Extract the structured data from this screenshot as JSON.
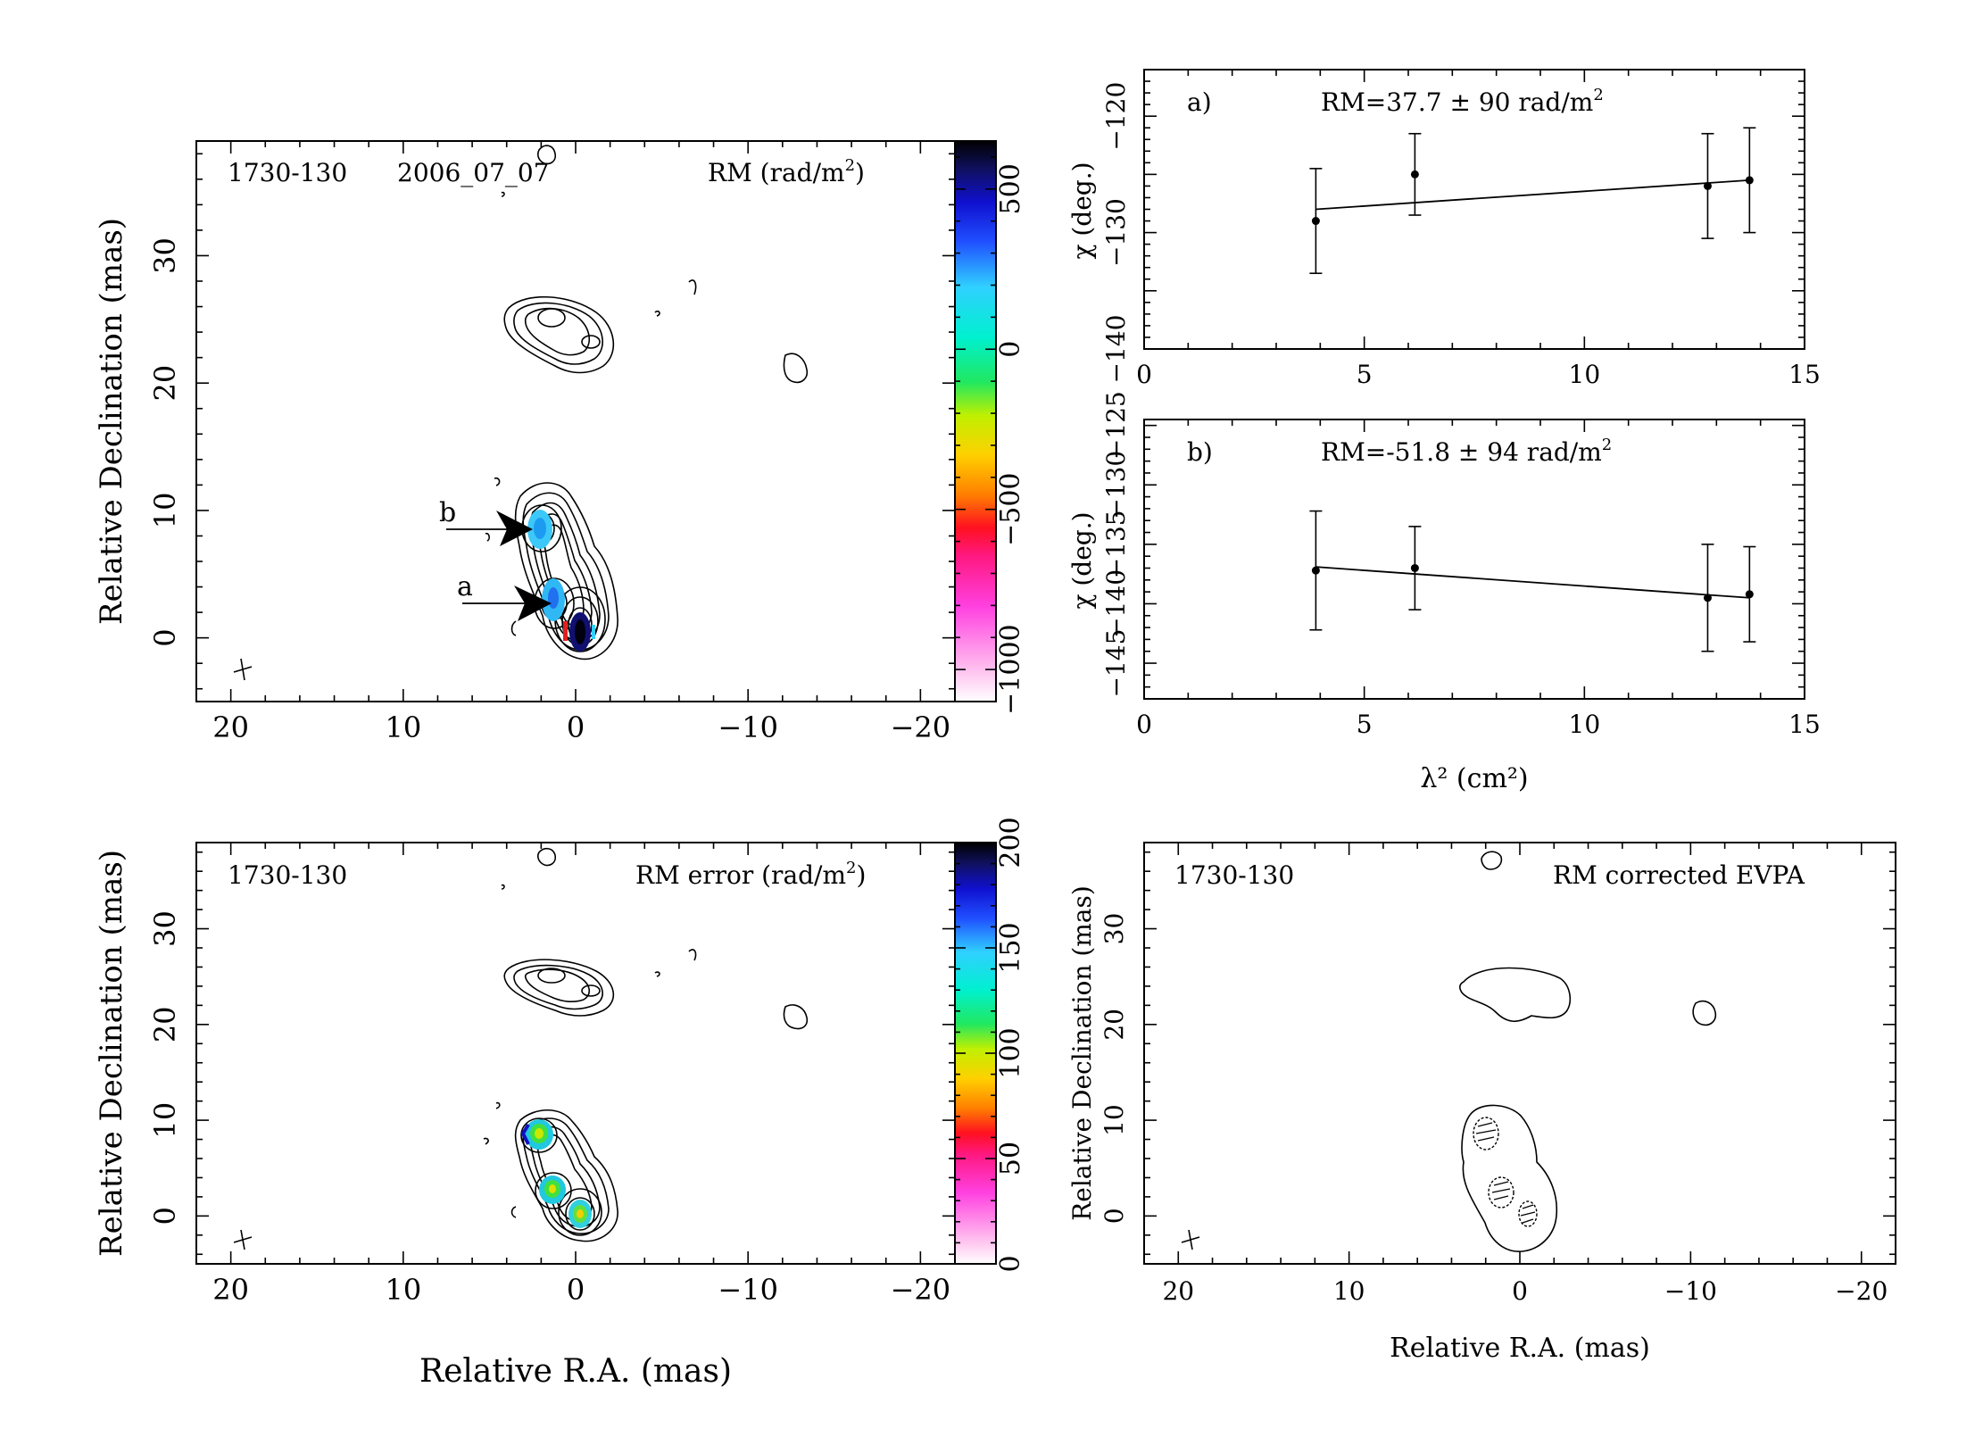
{
  "panels": {
    "rm_map": {
      "source": "1730-130",
      "epoch": "2006_07_07",
      "label": "RM (rad/m",
      "label_sup": "2",
      "label_close": ")",
      "xlabel": "",
      "ylabel": "Relative Declination (mas)",
      "colorbar_ticks": [
        "500",
        "0",
        "-500",
        "-1000"
      ],
      "colorbar_values": [
        500,
        0,
        -500,
        -1000
      ],
      "colorbar_range": [
        -1100,
        650
      ],
      "annotation_a": "a",
      "annotation_b": "b"
    },
    "rm_error_map": {
      "source": "1730-130",
      "label": "RM error (rad/m",
      "label_sup": "2",
      "label_close": ")",
      "xlabel": "Relative R.A. (mas)",
      "ylabel": "Relative Declination (mas)",
      "colorbar_ticks": [
        "200",
        "150",
        "100",
        "50",
        "0"
      ],
      "colorbar_values": [
        200,
        150,
        100,
        50,
        0
      ],
      "colorbar_range": [
        0,
        200
      ]
    },
    "evpa_map": {
      "source": "1730-130",
      "label": "RM corrected EVPA",
      "xlabel": "Relative R.A. (mas)",
      "ylabel": "Relative Declination (mas)"
    },
    "map_axes": {
      "x_ticks": [
        "20",
        "10",
        "0",
        "-10",
        "-20"
      ],
      "x_tick_values": [
        20,
        10,
        0,
        -10,
        -20
      ],
      "y_ticks": [
        "0",
        "10",
        "20",
        "30"
      ],
      "y_tick_values": [
        0,
        10,
        20,
        30
      ],
      "xlim": [
        22,
        -22
      ],
      "ylim": [
        -5,
        39
      ]
    }
  },
  "chart_data": [
    {
      "type": "scatter",
      "panel_label": "a)",
      "title": "RM=37.7 ± 90 rad/m",
      "title_sup": "2",
      "xlabel": "",
      "ylabel": "χ (deg.)",
      "xlim": [
        0,
        15
      ],
      "ylim": [
        -140,
        -116
      ],
      "x_ticks": [
        "0",
        "5",
        "10",
        "15"
      ],
      "y_ticks": [
        "-120",
        "-130",
        "-140"
      ],
      "y_tick_values": [
        -120,
        -130,
        -140
      ],
      "points": [
        {
          "x": 3.9,
          "y": -129.0,
          "err": 4.5
        },
        {
          "x": 6.15,
          "y": -125.0,
          "err": 3.5
        },
        {
          "x": 12.8,
          "y": -126.0,
          "err": 4.5
        },
        {
          "x": 13.75,
          "y": -125.5,
          "err": 4.5
        }
      ],
      "fit": {
        "x": [
          3.9,
          13.75
        ],
        "y": [
          -128.0,
          -125.5
        ]
      }
    },
    {
      "type": "scatter",
      "panel_label": "b)",
      "title": "RM=-51.8 ± 94 rad/m",
      "title_sup": "2",
      "xlabel": "λ² (cm²)",
      "ylabel": "χ (deg.)",
      "xlim": [
        0,
        15
      ],
      "ylim": [
        -148,
        -124.5
      ],
      "x_ticks": [
        "0",
        "5",
        "10",
        "15"
      ],
      "y_ticks": [
        "-125",
        "-130",
        "-135",
        "-140",
        "-145"
      ],
      "y_tick_values": [
        -125,
        -130,
        -135,
        -140,
        -145
      ],
      "points": [
        {
          "x": 3.9,
          "y": -137.2,
          "err": 5.0
        },
        {
          "x": 6.15,
          "y": -137.0,
          "err": 3.5
        },
        {
          "x": 12.8,
          "y": -139.5,
          "err": 4.5
        },
        {
          "x": 13.75,
          "y": -139.2,
          "err": 4.0
        }
      ],
      "fit": {
        "x": [
          3.9,
          13.75
        ],
        "y": [
          -136.9,
          -139.5
        ]
      }
    }
  ]
}
